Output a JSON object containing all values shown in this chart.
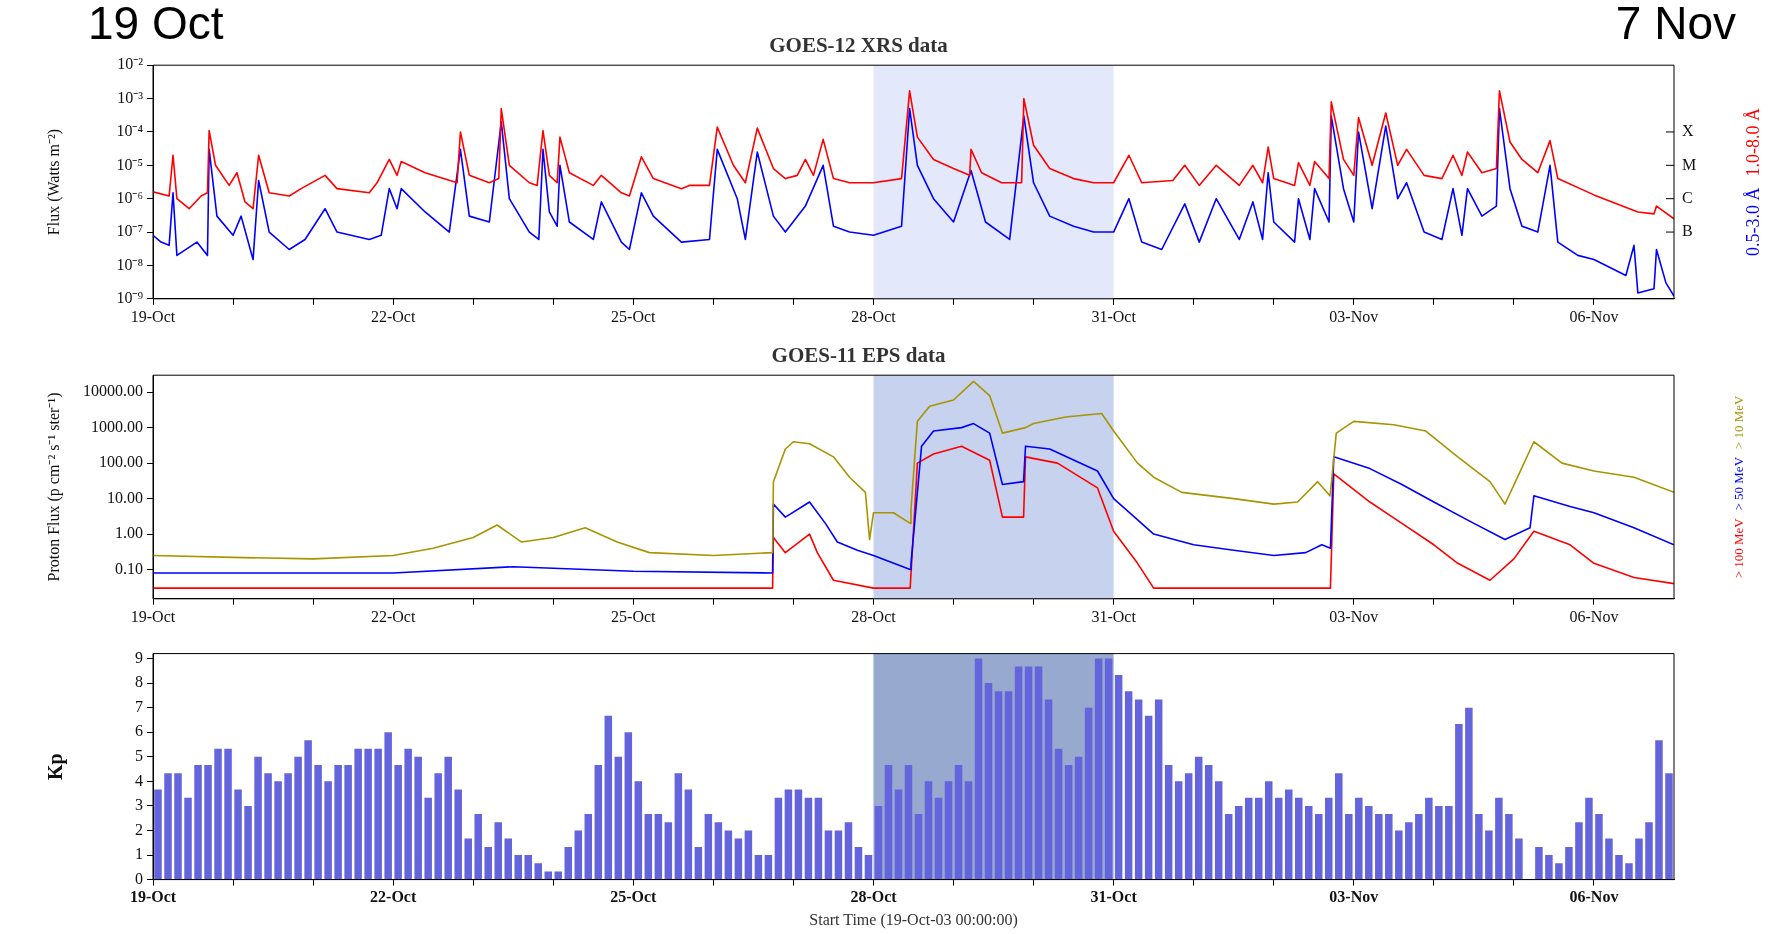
{
  "chart_data": [
    {
      "type": "line",
      "title": "GOES-12 XRS data",
      "ylabel": "Flux (Watts m⁻²)",
      "log": true,
      "legend": "right",
      "annotations": [
        "19 Oct",
        "7 Nov",
        "B",
        "C",
        "M",
        "X"
      ],
      "xlim": [
        "--10-19",
        "--11-07"
      ],
      "xticks": [
        {
          "value": "--10-19",
          "label": "19-Oct"
        },
        {
          "value": "--10-20",
          "label": null
        },
        {
          "value": "--10-21",
          "label": null
        },
        {
          "value": "--10-22",
          "label": "22-Oct"
        },
        {
          "value": "--10-23",
          "label": null
        },
        {
          "value": "--10-24",
          "label": null
        },
        {
          "value": "--10-25",
          "label": "25-Oct"
        },
        {
          "value": "--10-26",
          "label": null
        },
        {
          "value": "--10-27",
          "label": null
        },
        {
          "value": "--10-28",
          "label": "28-Oct"
        },
        {
          "value": "--10-29",
          "label": null
        },
        {
          "value": "--10-30",
          "label": null
        },
        {
          "value": "--10-31",
          "label": "31-Oct"
        },
        {
          "value": "--11-01",
          "label": null
        },
        {
          "value": "--11-02",
          "label": null
        },
        {
          "value": "--11-03",
          "label": "03-Nov"
        },
        {
          "value": "--11-04",
          "label": null
        },
        {
          "value": "--11-05",
          "label": null
        },
        {
          "value": "--11-06",
          "label": "06-Nov"
        }
      ],
      "ylim": [
        1e-09,
        0.01
      ],
      "yticks": [
        {
          "value": 1e-09,
          "label": "10⁻⁹"
        },
        {
          "value": 1e-08,
          "label": "10⁻⁸"
        },
        {
          "value": 1e-07,
          "label": "10⁻⁷"
        },
        {
          "value": 1e-06,
          "label": "10⁻⁶"
        },
        {
          "value": 1e-05,
          "label": "10⁻⁵"
        },
        {
          "value": 0.0001,
          "label": "10⁻⁴"
        },
        {
          "value": 0.001,
          "label": "10⁻³"
        },
        {
          "value": 0.01,
          "label": "10⁻²"
        }
      ],
      "bands": [
        {
          "axis": "x",
          "from": "--10-28",
          "to": "--10-31",
          "color": "#e3e9fa"
        }
      ],
      "series": [
        {
          "name": "1.0-8.0 Å",
          "color": "#ff0000",
          "x": [
            "--10-19T00:00",
            "--10-19T04:50",
            "--10-19T06:00",
            "--10-19T07:10",
            "--10-19T10:50",
            "--10-19T14:25",
            "--10-19T16:20",
            "--10-19T16:50",
            "--10-19T18:45",
            "--10-19T22:50",
            "--10-20T01:10",
            "--10-20T03:35",
            "--10-20T06:00",
            "--10-20T07:40",
            "--10-20T10:50",
            "--10-20T16:50",
            "--10-20T20:25",
            "--10-21T03:35",
            "--10-21T07:10",
            "--10-21T16:50",
            "--10-21T19:10",
            "--10-21T22:50",
            "--10-22T01:10",
            "--10-22T02:25",
            "--10-22T09:35",
            "--10-22T19:10",
            "--10-22T20:10",
            "--10-22T22:50",
            "--10-23T04:50",
            "--10-23T07:40",
            "--10-23T08:25",
            "--10-23T10:50",
            "--10-23T16:50",
            "--10-23T19:10",
            "--10-23T20:55",
            "--10-23T22:50",
            "--10-24T01:10",
            "--10-24T02:00",
            "--10-24T04:50",
            "--10-24T12:00",
            "--10-24T14:25",
            "--10-24T20:25",
            "--10-24T22:50",
            "--10-25T02:25",
            "--10-25T06:00",
            "--10-25T14:25",
            "--10-25T16:50",
            "--10-25T22:50",
            "--10-26T01:10",
            "--10-26T06:00",
            "--10-26T09:35",
            "--10-26T13:10",
            "--10-26T18:00",
            "--10-26T21:35",
            "--10-27T01:10",
            "--10-27T03:35",
            "--10-27T06:00",
            "--10-27T08:55",
            "--10-27T12:00",
            "--10-27T16:50",
            "--10-28T00:00",
            "--10-28T08:25",
            "--10-28T10:50",
            "--10-28T13:10",
            "--10-28T18:00",
            "--10-29T00:00",
            "--10-29T04:50",
            "--10-29T05:15",
            "--10-29T08:25",
            "--10-29T14:25",
            "--10-29T20:25",
            "--10-29T21:05",
            "--10-30T00:00",
            "--10-30T04:50",
            "--10-30T12:00",
            "--10-30T18:00",
            "--10-31T00:00",
            "--10-31T04:35",
            "--10-31T08:25",
            "--10-31T17:45",
            "--10-31T21:20",
            "--11-01T01:40",
            "--11-01T06:45",
            "--11-01T13:40",
            "--11-01T17:45",
            "--11-01T20:40",
            "--11-01T22:20",
            "--11-02T00:00",
            "--11-02T06:15",
            "--11-02T07:25",
            "--11-02T10:50",
            "--11-02T12:15",
            "--11-02T16:35",
            "--11-02T17:15",
            "--11-02T20:55",
            "--11-03T00:00",
            "--11-03T01:25",
            "--11-03T05:30",
            "--11-03T09:35",
            "--11-03T13:10",
            "--11-03T15:50",
            "--11-03T21:05",
            "--11-04T02:25",
            "--11-04T05:45",
            "--11-04T08:25",
            "--11-04T10:05",
            "--11-04T14:25",
            "--11-04T18:45",
            "--11-04T19:40",
            "--11-04T22:50",
            "--11-05T02:25",
            "--11-05T07:10",
            "--11-05T10:50",
            "--11-05T13:10",
            "--11-06T00:00",
            "--11-06T13:10",
            "--11-06T18:00",
            "--11-06T18:45",
            "--11-07T00:00"
          ],
          "values": [
            1.6e-06,
            1.2e-06,
            2e-05,
            1e-06,
            5e-07,
            1.2e-06,
            1.5e-06,
            0.00011,
            1e-05,
            2.5e-06,
            6e-06,
            8e-07,
            5e-07,
            2e-05,
            1.5e-06,
            1.2e-06,
            2e-06,
            5e-06,
            2e-06,
            1.5e-06,
            3e-06,
            1.5e-05,
            5e-06,
            1.3e-05,
            6e-06,
            3e-06,
            0.0001,
            5e-06,
            3e-06,
            4e-06,
            0.0005,
            1e-05,
            3e-06,
            2.5e-06,
            0.00011,
            5e-06,
            3e-06,
            7e-05,
            6e-06,
            2.5e-06,
            5e-06,
            1.5e-06,
            1.2e-06,
            1.8e-05,
            4e-06,
            2e-06,
            2.5e-06,
            2.5e-06,
            0.00014,
            1e-05,
            3e-06,
            0.00013,
            8e-06,
            4e-06,
            5e-06,
            1.5e-05,
            5e-06,
            6e-05,
            4e-06,
            3e-06,
            3e-06,
            4e-06,
            0.0017,
            7e-05,
            1.5e-05,
            8e-06,
            5e-06,
            3e-05,
            6e-06,
            3e-06,
            3e-06,
            0.001,
            4e-05,
            8e-06,
            4e-06,
            3e-06,
            3e-06,
            2e-05,
            3e-06,
            3.5e-06,
            1e-05,
            2.5e-06,
            1e-05,
            2.5e-06,
            1e-05,
            3e-06,
            3.5e-05,
            4e-06,
            2.5e-06,
            1.2e-05,
            2.5e-06,
            1.3e-05,
            4e-06,
            0.0008,
            1.5e-05,
            5e-06,
            0.00027,
            1e-05,
            0.00037,
            1e-05,
            3e-05,
            5e-06,
            4e-06,
            2e-05,
            5e-06,
            2.5e-05,
            6e-06,
            8e-06,
            0.0017,
            5e-05,
            1.5e-05,
            6e-06,
            5.5e-05,
            4e-06,
            1.3e-06,
            4e-07,
            3.5e-07,
            6e-07,
            2.5e-07
          ]
        },
        {
          "name": "0.5-3.0 Å",
          "color": "#0000ff",
          "x": [
            "--10-19T00:00",
            "--10-19T02:25",
            "--10-19T04:50",
            "--10-19T06:00",
            "--10-19T07:10",
            "--10-19T13:10",
            "--10-19T16:20",
            "--10-19T16:50",
            "--10-19T19:10",
            "--10-20T00:00",
            "--10-20T02:25",
            "--10-20T06:00",
            "--10-20T07:40",
            "--10-20T10:50",
            "--10-20T16:50",
            "--10-20T21:35",
            "--10-21T03:35",
            "--10-21T07:10",
            "--10-21T16:50",
            "--10-21T20:25",
            "--10-21T22:50",
            "--10-22T01:10",
            "--10-22T02:25",
            "--10-22T09:35",
            "--10-22T16:50",
            "--10-22T20:10",
            "--10-22T22:50",
            "--10-23T04:50",
            "--10-23T08:25",
            "--10-23T10:50",
            "--10-23T16:50",
            "--10-23T19:40",
            "--10-23T20:55",
            "--10-23T22:50",
            "--10-24T01:10",
            "--10-24T02:00",
            "--10-24T04:50",
            "--10-24T12:00",
            "--10-24T14:25",
            "--10-24T20:25",
            "--10-24T22:50",
            "--10-25T02:25",
            "--10-25T06:00",
            "--10-25T14:25",
            "--10-25T22:50",
            "--10-26T01:10",
            "--10-26T07:10",
            "--10-26T09:35",
            "--10-26T13:10",
            "--10-26T18:00",
            "--10-26T21:35",
            "--10-27T03:35",
            "--10-27T08:55",
            "--10-27T12:00",
            "--10-27T16:50",
            "--10-28T00:00",
            "--10-28T08:25",
            "--10-28T10:50",
            "--10-28T13:10",
            "--10-28T18:00",
            "--10-29T00:00",
            "--10-29T05:15",
            "--10-29T09:35",
            "--10-29T16:50",
            "--10-29T21:05",
            "--10-30T00:00",
            "--10-30T04:50",
            "--10-30T12:00",
            "--10-30T18:00",
            "--10-31T00:00",
            "--10-31T04:35",
            "--10-31T08:25",
            "--10-31T14:25",
            "--10-31T21:20",
            "--11-01T01:40",
            "--11-01T06:45",
            "--11-01T13:40",
            "--11-01T17:45",
            "--11-01T20:40",
            "--11-01T22:20",
            "--11-02T00:00",
            "--11-02T06:15",
            "--11-02T07:25",
            "--11-02T10:50",
            "--11-02T12:15",
            "--11-02T16:35",
            "--11-02T17:15",
            "--11-02T20:55",
            "--11-03T00:00",
            "--11-03T01:25",
            "--11-03T05:30",
            "--11-03T09:35",
            "--11-03T13:10",
            "--11-03T15:50",
            "--11-03T21:05",
            "--11-04T02:25",
            "--11-04T05:45",
            "--11-04T08:25",
            "--11-04T10:05",
            "--11-04T14:25",
            "--11-04T18:45",
            "--11-04T19:40",
            "--11-04T22:50",
            "--11-05T02:25",
            "--11-05T07:10",
            "--11-05T10:50",
            "--11-05T13:10",
            "--11-05T19:10",
            "--11-06T00:00",
            "--11-06T09:35",
            "--11-06T12:00",
            "--11-06T13:10",
            "--11-06T18:00",
            "--11-06T18:45",
            "--11-06T21:35",
            "--11-07T00:00"
          ],
          "values": [
            8e-08,
            5e-08,
            4e-08,
            1.5e-06,
            2e-08,
            5e-08,
            2e-08,
            3e-05,
            3e-07,
            8e-08,
            3e-07,
            1.5e-08,
            3.5e-06,
            1e-07,
            3e-08,
            6e-08,
            5e-07,
            1e-07,
            6e-08,
            8e-08,
            2e-06,
            5e-07,
            2e-06,
            4e-07,
            1e-07,
            3e-05,
            3e-07,
            2e-07,
            0.0002,
            1e-06,
            1e-07,
            6e-08,
            3e-05,
            4e-07,
            1.5e-07,
            1e-05,
            2e-07,
            6e-08,
            8e-07,
            5e-08,
            3e-08,
            1.5e-06,
            3e-07,
            5e-08,
            6e-08,
            3e-05,
            1e-06,
            6e-08,
            2.5e-05,
            3e-07,
            1e-07,
            6e-07,
            1e-05,
            1.5e-07,
            1e-07,
            8e-08,
            1.5e-07,
            0.0005,
            1e-05,
            1e-06,
            2e-07,
            7e-06,
            2e-07,
            6e-08,
            0.0003,
            3e-06,
            3e-07,
            1.5e-07,
            1e-07,
            1e-07,
            1e-06,
            5e-08,
            3e-08,
            7e-07,
            5e-08,
            1e-06,
            6e-08,
            8e-07,
            6e-08,
            6e-06,
            2e-07,
            5e-08,
            1e-06,
            6e-08,
            2e-06,
            2e-07,
            0.0003,
            2e-06,
            2e-07,
            0.0001,
            5e-07,
            0.00015,
            1e-06,
            3e-06,
            1e-07,
            6e-08,
            2e-06,
            8e-08,
            2e-06,
            3e-07,
            6e-07,
            0.0005,
            2e-06,
            1.5e-07,
            1e-07,
            1e-05,
            5e-08,
            2e-08,
            1.5e-08,
            5e-09,
            4e-08,
            1.5e-09,
            2e-09,
            3e-08,
            3e-09,
            1.2e-09
          ]
        }
      ]
    },
    {
      "type": "line",
      "title": "GOES-11 EPS data",
      "ylabel": "Proton Flux (p cm⁻² s⁻¹ ster⁻¹)",
      "log": true,
      "legend": "right",
      "xlim": [
        "--10-19",
        "--11-07"
      ],
      "xticks": [
        {
          "value": "--10-19",
          "label": "19-Oct"
        },
        {
          "value": "--10-20",
          "label": null
        },
        {
          "value": "--10-21",
          "label": null
        },
        {
          "value": "--10-22",
          "label": "22-Oct"
        },
        {
          "value": "--10-23",
          "label": null
        },
        {
          "value": "--10-24",
          "label": null
        },
        {
          "value": "--10-25",
          "label": "25-Oct"
        },
        {
          "value": "--10-26",
          "label": null
        },
        {
          "value": "--10-27",
          "label": null
        },
        {
          "value": "--10-28",
          "label": "28-Oct"
        },
        {
          "value": "--10-29",
          "label": null
        },
        {
          "value": "--10-30",
          "label": null
        },
        {
          "value": "--10-31",
          "label": "31-Oct"
        },
        {
          "value": "--11-01",
          "label": null
        },
        {
          "value": "--11-02",
          "label": null
        },
        {
          "value": "--11-03",
          "label": "03-Nov"
        },
        {
          "value": "--11-04",
          "label": null
        },
        {
          "value": "--11-05",
          "label": null
        },
        {
          "value": "--11-06",
          "label": "06-Nov"
        }
      ],
      "ylim": [
        0.015,
        30000
      ],
      "yticks": [
        {
          "value": 0.1,
          "label": "0.10"
        },
        {
          "value": 1,
          "label": "1.00"
        },
        {
          "value": 10,
          "label": "10.00"
        },
        {
          "value": 100,
          "label": "100.00"
        },
        {
          "value": 1000,
          "label": "1000.00"
        },
        {
          "value": 10000,
          "label": "10000.00"
        }
      ],
      "bands": [
        {
          "axis": "x",
          "from": "--10-28",
          "to": "--10-31",
          "color": "#c6d2ee"
        }
      ],
      "series": [
        {
          "name": "> 10 MeV",
          "color": "#a89400",
          "x": [
            "--10-19T00:00",
            "--10-20T00:00",
            "--10-21T00:00",
            "--10-22T00:00",
            "--10-22T12:00",
            "--10-23T00:00",
            "--10-23T07:10",
            "--10-23T14:25",
            "--10-24T00:00",
            "--10-24T09:35",
            "--10-24T19:10",
            "--10-25T04:50",
            "--10-26T00:00",
            "--10-26T17:45",
            "--10-26T18:00",
            "--10-26T21:35",
            "--10-27T00:00",
            "--10-27T04:50",
            "--10-27T12:00",
            "--10-27T16:50",
            "--10-27T21:35",
            "--10-27T22:50",
            "--10-28T00:00",
            "--10-28T06:00",
            "--10-28T11:00",
            "--10-28T11:15",
            "--10-28T13:10",
            "--10-28T16:50",
            "--10-29T00:00",
            "--10-29T06:00",
            "--10-29T10:50",
            "--10-29T14:40",
            "--10-29T21:35",
            "--10-30T00:00",
            "--10-30T09:35",
            "--10-30T20:25",
            "--10-31T00:00",
            "--10-31T07:10",
            "--10-31T12:00",
            "--10-31T20:25",
            "--11-01T12:00",
            "--11-02T00:00",
            "--11-02T07:10",
            "--11-02T13:10",
            "--11-02T16:50",
            "--11-02T17:00",
            "--11-02T18:45",
            "--11-03T00:00",
            "--11-03T12:00",
            "--11-03T21:35",
            "--11-04T07:10",
            "--11-04T16:50",
            "--11-04T21:20",
            "--11-05T06:00",
            "--11-05T14:25",
            "--11-06T00:00",
            "--11-06T12:00",
            "--11-07T00:00"
          ],
          "values": [
            0.25,
            0.22,
            0.2,
            0.25,
            0.4,
            0.8,
            1.8,
            0.6,
            0.8,
            1.5,
            0.6,
            0.3,
            0.25,
            0.3,
            30,
            250,
            400,
            350,
            150,
            40,
            15,
            0.7,
            4,
            4,
            2,
            5,
            1500,
            4000,
            6000,
            20000,
            8000,
            700,
            1000,
            1300,
            2000,
            2500,
            800,
            100,
            40,
            15,
            10,
            7,
            8,
            30,
            12,
            15,
            700,
            1500,
            1200,
            800,
            150,
            30,
            7,
            400,
            100,
            60,
            40,
            15
          ]
        },
        {
          "name": "> 50 MeV",
          "color": "#0000ff",
          "x": [
            "--10-19T00:00",
            "--10-22T00:00",
            "--10-23T12:00",
            "--10-25T00:00",
            "--10-26T17:45",
            "--10-26T18:00",
            "--10-26T21:35",
            "--10-27T04:50",
            "--10-27T09:35",
            "--10-27T13:10",
            "--10-27T19:10",
            "--10-28T00:00",
            "--10-28T11:00",
            "--10-28T11:15",
            "--10-28T14:25",
            "--10-28T18:00",
            "--10-29T02:25",
            "--10-29T06:00",
            "--10-29T10:50",
            "--10-29T14:40",
            "--10-29T21:00",
            "--10-29T21:35",
            "--10-30T04:50",
            "--10-30T19:10",
            "--10-31T00:00",
            "--10-31T12:00",
            "--11-01T00:00",
            "--11-01T12:00",
            "--11-02T00:00",
            "--11-02T09:35",
            "--11-02T14:25",
            "--11-02T17:00",
            "--11-02T18:00",
            "--11-03T04:50",
            "--11-03T14:25",
            "--11-04T00:00",
            "--11-04T12:00",
            "--11-04T21:20",
            "--11-05T04:50",
            "--11-05T06:00",
            "--11-05T16:50",
            "--11-06T00:00",
            "--11-06T12:00",
            "--11-07T00:00"
          ],
          "values": [
            0.08,
            0.08,
            0.12,
            0.09,
            0.08,
            7,
            3,
            8,
            2,
            0.6,
            0.35,
            0.25,
            0.1,
            0.15,
            300,
            800,
            1000,
            1300,
            700,
            25,
            30,
            300,
            250,
            60,
            10,
            1,
            0.5,
            0.35,
            0.25,
            0.3,
            0.5,
            0.4,
            150,
            70,
            25,
            8,
            2,
            0.7,
            1.5,
            12,
            6,
            4,
            1.5,
            0.5
          ]
        },
        {
          "name": "> 100 MeV",
          "color": "#ff0000",
          "x": [
            "--10-19T00:00",
            "--10-26T17:45",
            "--10-26T18:00",
            "--10-26T21:35",
            "--10-27T04:50",
            "--10-27T07:10",
            "--10-27T12:00",
            "--10-28T00:00",
            "--10-28T11:00",
            "--10-28T13:10",
            "--10-28T18:00",
            "--10-29T02:25",
            "--10-29T10:50",
            "--10-29T14:40",
            "--10-29T21:00",
            "--10-29T21:35",
            "--10-30T07:10",
            "--10-30T19:10",
            "--10-31T00:00",
            "--10-31T07:10",
            "--10-31T12:00",
            "--11-02T17:00",
            "--11-02T18:00",
            "--11-03T04:50",
            "--11-03T14:25",
            "--11-04T00:00",
            "--11-04T07:10",
            "--11-04T16:50",
            "--11-05T00:00",
            "--11-05T06:00",
            "--11-05T16:50",
            "--11-06T00:00",
            "--11-06T12:00",
            "--11-07T00:00"
          ],
          "values": [
            0.03,
            0.03,
            0.8,
            0.3,
            1,
            0.3,
            0.05,
            0.03,
            0.03,
            100,
            180,
            300,
            120,
            3,
            3,
            150,
            100,
            20,
            1.2,
            0.15,
            0.03,
            0.03,
            50,
            8,
            2,
            0.5,
            0.15,
            0.05,
            0.2,
            1.2,
            0.5,
            0.15,
            0.06,
            0.04
          ]
        }
      ]
    },
    {
      "type": "bar",
      "ylabel": "Kp",
      "xlabel": "Start Time (19-Oct-03 00:00:00)",
      "color": "#6464dc",
      "xlim": [
        "--10-19",
        "--11-07"
      ],
      "xticks": [
        {
          "value": "--10-19",
          "label": "19-Oct"
        },
        {
          "value": "--10-20",
          "label": null
        },
        {
          "value": "--10-21",
          "label": null
        },
        {
          "value": "--10-22",
          "label": "22-Oct"
        },
        {
          "value": "--10-23",
          "label": null
        },
        {
          "value": "--10-24",
          "label": null
        },
        {
          "value": "--10-25",
          "label": "25-Oct"
        },
        {
          "value": "--10-26",
          "label": null
        },
        {
          "value": "--10-27",
          "label": null
        },
        {
          "value": "--10-28",
          "label": "28-Oct"
        },
        {
          "value": "--10-29",
          "label": null
        },
        {
          "value": "--10-30",
          "label": null
        },
        {
          "value": "--10-31",
          "label": "31-Oct"
        },
        {
          "value": "--11-01",
          "label": null
        },
        {
          "value": "--11-02",
          "label": null
        },
        {
          "value": "--11-03",
          "label": "03-Nov"
        },
        {
          "value": "--11-04",
          "label": null
        },
        {
          "value": "--11-05",
          "label": null
        },
        {
          "value": "--11-06",
          "label": "06-Nov"
        }
      ],
      "ylim": [
        0,
        9.2
      ],
      "yticks": [
        0,
        1,
        2,
        3,
        4,
        5,
        6,
        7,
        8,
        9
      ],
      "bands": [
        {
          "axis": "x",
          "from": "--10-28",
          "to": "--10-31",
          "color": "#98a9cf"
        }
      ],
      "x": [
        "--10-19T01:30",
        "--10-19T04:30",
        "--10-19T07:30",
        "--10-19T10:30",
        "--10-19T13:30",
        "--10-19T16:30",
        "--10-19T19:30",
        "--10-19T22:30",
        "--10-20T01:30",
        "--10-20T04:30",
        "--10-20T07:30",
        "--10-20T10:30",
        "--10-20T13:30",
        "--10-20T16:30",
        "--10-20T19:30",
        "--10-20T22:30",
        "--10-21T01:30",
        "--10-21T04:30",
        "--10-21T07:30",
        "--10-21T10:30",
        "--10-21T13:30",
        "--10-21T16:30",
        "--10-21T19:30",
        "--10-21T22:30",
        "--10-22T01:30",
        "--10-22T04:30",
        "--10-22T07:30",
        "--10-22T10:30",
        "--10-22T13:30",
        "--10-22T16:30",
        "--10-22T19:30",
        "--10-22T22:30",
        "--10-23T01:30",
        "--10-23T04:30",
        "--10-23T07:30",
        "--10-23T10:30",
        "--10-23T13:30",
        "--10-23T16:30",
        "--10-23T19:30",
        "--10-23T22:30",
        "--10-24T01:30",
        "--10-24T04:30",
        "--10-24T07:30",
        "--10-24T10:30",
        "--10-24T13:30",
        "--10-24T16:30",
        "--10-24T19:30",
        "--10-24T22:30",
        "--10-25T01:30",
        "--10-25T04:30",
        "--10-25T07:30",
        "--10-25T10:30",
        "--10-25T13:30",
        "--10-25T16:30",
        "--10-25T19:30",
        "--10-25T22:30",
        "--10-26T01:30",
        "--10-26T04:30",
        "--10-26T07:30",
        "--10-26T10:30",
        "--10-26T13:30",
        "--10-26T16:30",
        "--10-26T19:30",
        "--10-26T22:30",
        "--10-27T01:30",
        "--10-27T04:30",
        "--10-27T07:30",
        "--10-27T10:30",
        "--10-27T13:30",
        "--10-27T16:30",
        "--10-27T19:30",
        "--10-27T22:30",
        "--10-28T01:30",
        "--10-28T04:30",
        "--10-28T07:30",
        "--10-28T10:30",
        "--10-28T13:30",
        "--10-28T16:30",
        "--10-28T19:30",
        "--10-28T22:30",
        "--10-29T01:30",
        "--10-29T04:30",
        "--10-29T07:30",
        "--10-29T10:30",
        "--10-29T13:30",
        "--10-29T16:30",
        "--10-29T19:30",
        "--10-29T22:30",
        "--10-30T01:30",
        "--10-30T04:30",
        "--10-30T07:30",
        "--10-30T10:30",
        "--10-30T13:30",
        "--10-30T16:30",
        "--10-30T19:30",
        "--10-30T22:30",
        "--10-31T01:30",
        "--10-31T04:30",
        "--10-31T07:30",
        "--10-31T10:30",
        "--10-31T13:30",
        "--10-31T16:30",
        "--10-31T19:30",
        "--10-31T22:30",
        "--11-01T01:30",
        "--11-01T04:30",
        "--11-01T07:30",
        "--11-01T10:30",
        "--11-01T13:30",
        "--11-01T16:30",
        "--11-01T19:30",
        "--11-01T22:30",
        "--11-02T01:30",
        "--11-02T04:30",
        "--11-02T07:30",
        "--11-02T10:30",
        "--11-02T13:30",
        "--11-02T16:30",
        "--11-02T19:30",
        "--11-02T22:30",
        "--11-03T01:30",
        "--11-03T04:30",
        "--11-03T07:30",
        "--11-03T10:30",
        "--11-03T13:30",
        "--11-03T16:30",
        "--11-03T19:30",
        "--11-03T22:30",
        "--11-04T01:30",
        "--11-04T04:30",
        "--11-04T07:30",
        "--11-04T10:30",
        "--11-04T13:30",
        "--11-04T16:30",
        "--11-04T19:30",
        "--11-04T22:30",
        "--11-05T01:30",
        "--11-05T04:30",
        "--11-05T07:30",
        "--11-05T10:30",
        "--11-05T13:30",
        "--11-05T16:30",
        "--11-05T19:30",
        "--11-05T22:30",
        "--11-06T01:30",
        "--11-06T04:30",
        "--11-06T07:30",
        "--11-06T10:30",
        "--11-06T13:30",
        "--11-06T16:30",
        "--11-06T19:30",
        "--11-06T22:30"
      ],
      "values": [
        3.67,
        4.33,
        4.33,
        3.33,
        4.67,
        4.67,
        5.33,
        5.33,
        3.67,
        3,
        5,
        4.33,
        4,
        4.33,
        5,
        5.67,
        4.67,
        4,
        4.67,
        4.67,
        5.33,
        5.33,
        5.33,
        6,
        4.67,
        5.33,
        5,
        3.33,
        4.33,
        5,
        3.67,
        1.67,
        2.67,
        1.33,
        2.33,
        1.67,
        1,
        1,
        0.67,
        0.33,
        0.33,
        1.33,
        2,
        2.67,
        4.67,
        6.67,
        5,
        6,
        4,
        2.67,
        2.67,
        2.33,
        4.33,
        3.67,
        1.33,
        2.67,
        2.33,
        2,
        1.67,
        2,
        1,
        1,
        3.33,
        3.67,
        3.67,
        3.33,
        3.33,
        2,
        2,
        2.33,
        1.33,
        1,
        3,
        4.67,
        3.67,
        4.67,
        2.67,
        4,
        3.33,
        4,
        4.67,
        4,
        9,
        8,
        7.67,
        7.67,
        8.67,
        8.67,
        8.67,
        7.33,
        5.33,
        4.67,
        5,
        7,
        9,
        9,
        8.33,
        7.67,
        7.33,
        6.67,
        7.33,
        4.67,
        4,
        4.33,
        5,
        4.67,
        4,
        2.67,
        3,
        3.33,
        3.33,
        4,
        3.33,
        3.67,
        3.33,
        3,
        2.67,
        3.33,
        4.33,
        2.67,
        3.33,
        3,
        2.67,
        2.67,
        2,
        2.33,
        2.67,
        3.33,
        3,
        3,
        6.33,
        7,
        2.67,
        2,
        3.33,
        2.67,
        1.67,
        0,
        1.33,
        1,
        0.67,
        1.33,
        2.33,
        3.33,
        2.67,
        1.67,
        1,
        0.67,
        1.67,
        2.33,
        5.67,
        4.33
      ]
    }
  ]
}
